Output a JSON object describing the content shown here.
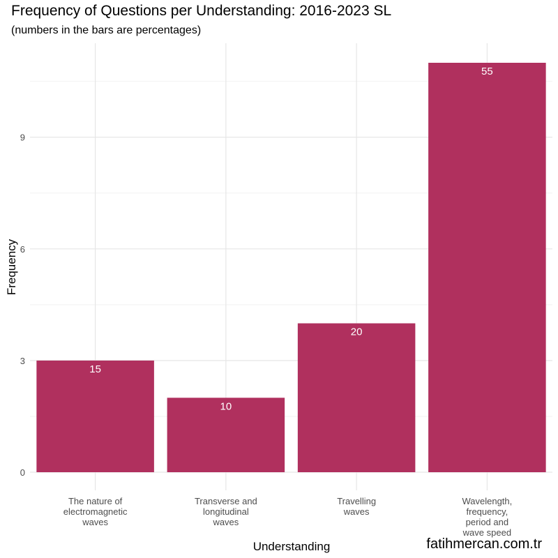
{
  "chart_data": {
    "type": "bar",
    "title": "Frequency of Questions per Understanding: 2016-2023 SL",
    "subtitle": "(numbers in the bars are percentages)",
    "xlabel": "Understanding",
    "ylabel": "Frequency",
    "categories": [
      [
        "The nature of",
        "electromagnetic",
        "waves"
      ],
      [
        "Transverse and",
        "longitudinal",
        "waves"
      ],
      [
        "Travelling",
        "waves"
      ],
      [
        "Wavelength,",
        "frequency,",
        "period and",
        "wave speed"
      ]
    ],
    "values": [
      3,
      2,
      4,
      11
    ],
    "bar_labels": [
      "15",
      "10",
      "20",
      "55"
    ],
    "ylim": [
      0,
      11.55
    ],
    "yticks": [
      0,
      3,
      6,
      9
    ],
    "grid": true,
    "colors": {
      "bar": "#b0305e",
      "bar_label": "#ffffff",
      "grid_major": "#e6e6e6",
      "grid_minor": "#f2f2f2",
      "tick_text": "#4d4d4d"
    }
  },
  "watermark": "fatihmercan.com.tr"
}
